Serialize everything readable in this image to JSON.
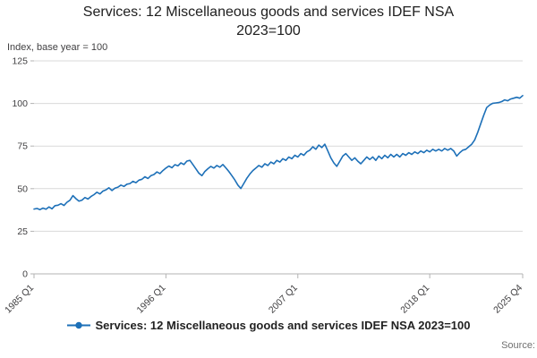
{
  "title": "Services: 12 Miscellaneous goods and services IDEF NSA 2023=100",
  "y_axis_note": "Index, base year = 100",
  "legend": {
    "label": "Services: 12 Miscellaneous goods and services IDEF NSA 2023=100"
  },
  "source_label": "Source:",
  "colors": {
    "line": "#1d70b8",
    "grid": "#d9d9d9",
    "axis": "#b3b3b3",
    "text": "#414042"
  },
  "chart_data": {
    "type": "line",
    "title": "Services: 12 Miscellaneous goods and services IDEF NSA 2023=100",
    "xlabel": "",
    "ylabel": "Index, base year = 100",
    "ylim": [
      0,
      125
    ],
    "y_ticks": [
      0,
      25,
      50,
      75,
      100,
      125
    ],
    "x_start": "1985 Q1",
    "x_end": "2025 Q4",
    "frequency": "quarterly",
    "grid": true,
    "legend_position": "bottom",
    "x_ticks": [
      {
        "label": "1985 Q1",
        "index": 0
      },
      {
        "label": "1996 Q1",
        "index": 44
      },
      {
        "label": "2007 Q1",
        "index": 88
      },
      {
        "label": "2018 Q1",
        "index": 132
      },
      {
        "label": "2025 Q4",
        "index": 163
      }
    ],
    "series": [
      {
        "name": "Services: 12 Miscellaneous goods and services IDEF NSA 2023=100",
        "values": [
          38.0,
          38.4,
          37.7,
          38.6,
          37.9,
          39.3,
          38.2,
          40.0,
          40.3,
          41.2,
          40.1,
          42.0,
          43.2,
          45.9,
          44.1,
          42.7,
          43.3,
          44.8,
          43.9,
          45.4,
          46.5,
          47.9,
          46.9,
          48.6,
          49.3,
          50.5,
          48.9,
          50.3,
          50.9,
          52.1,
          51.3,
          52.6,
          53.0,
          54.3,
          53.5,
          55.0,
          55.5,
          57.0,
          56.0,
          57.6,
          58.3,
          59.8,
          58.9,
          60.6,
          62.1,
          63.3,
          62.3,
          64.1,
          63.4,
          65.1,
          64.2,
          66.2,
          66.6,
          64.2,
          61.6,
          59.1,
          57.6,
          60.1,
          61.7,
          63.1,
          62.1,
          63.6,
          62.6,
          64.2,
          62.2,
          60.1,
          57.6,
          55.1,
          52.1,
          50.1,
          53.1,
          56.1,
          58.6,
          60.6,
          62.1,
          63.6,
          62.6,
          64.6,
          63.6,
          65.6,
          64.6,
          66.6,
          65.6,
          67.6,
          66.6,
          68.6,
          67.6,
          69.6,
          68.6,
          70.6,
          69.6,
          71.6,
          72.6,
          74.6,
          73.1,
          75.6,
          74.1,
          76.1,
          72.1,
          68.1,
          65.1,
          63.1,
          66.1,
          69.1,
          70.6,
          68.6,
          66.6,
          68.1,
          66.1,
          64.6,
          66.6,
          68.6,
          67.1,
          68.6,
          66.6,
          69.1,
          67.6,
          69.6,
          68.1,
          70.1,
          68.6,
          70.1,
          68.6,
          70.6,
          69.6,
          71.1,
          70.1,
          71.6,
          70.6,
          72.1,
          71.1,
          72.6,
          71.6,
          73.1,
          72.1,
          73.1,
          72.1,
          73.6,
          72.6,
          73.6,
          72.1,
          69.1,
          71.1,
          72.6,
          73.1,
          74.6,
          76.1,
          78.6,
          83.1,
          88.1,
          93.1,
          97.6,
          99.1,
          100.1,
          100.3,
          100.5,
          101.1,
          102.1,
          101.6,
          102.6,
          103.1,
          103.6,
          103.1,
          104.6
        ]
      }
    ]
  }
}
